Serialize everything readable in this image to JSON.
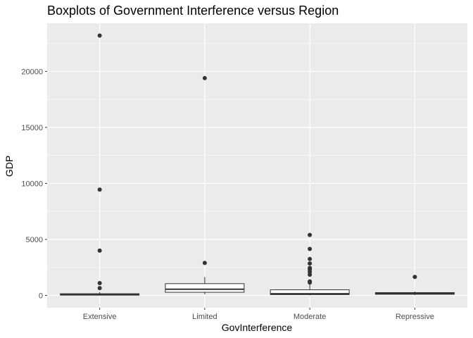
{
  "chart_data": {
    "type": "boxplot",
    "title": "Boxplots of Government Interference versus Region",
    "xlabel": "GovInterference",
    "ylabel": "GDP",
    "ylim": [
      -1100,
      24300
    ],
    "yticks": [
      0,
      5000,
      10000,
      15000,
      20000
    ],
    "ytick_labels": [
      "0",
      "5000",
      "10000",
      "15000",
      "20000"
    ],
    "grid": true,
    "categories": [
      "Extensive",
      "Limited",
      "Moderate",
      "Repressive"
    ],
    "boxes": [
      {
        "category": "Extensive",
        "min": 0,
        "q1": 20,
        "median": 70,
        "q3": 150,
        "max": 300,
        "outliers": [
          23200,
          9450,
          4000,
          1100,
          650
        ]
      },
      {
        "category": "Limited",
        "min": 100,
        "q1": 280,
        "median": 550,
        "q3": 1050,
        "max": 1650,
        "outliers": [
          19400,
          2900
        ]
      },
      {
        "category": "Moderate",
        "min": 0,
        "q1": 70,
        "median": 150,
        "q3": 500,
        "max": 1000,
        "outliers": [
          5400,
          4150,
          3250,
          2850,
          2450,
          2300,
          2100,
          1850,
          1250,
          1150
        ]
      },
      {
        "category": "Repressive",
        "min": 30,
        "q1": 100,
        "median": 170,
        "q3": 250,
        "max": 350,
        "outliers": [
          1650
        ]
      }
    ],
    "colors": {
      "panel": "#ebebeb",
      "grid": "#ffffff",
      "box_fill": "#ffffff",
      "box_line": "#333333",
      "point": "#333333"
    }
  }
}
